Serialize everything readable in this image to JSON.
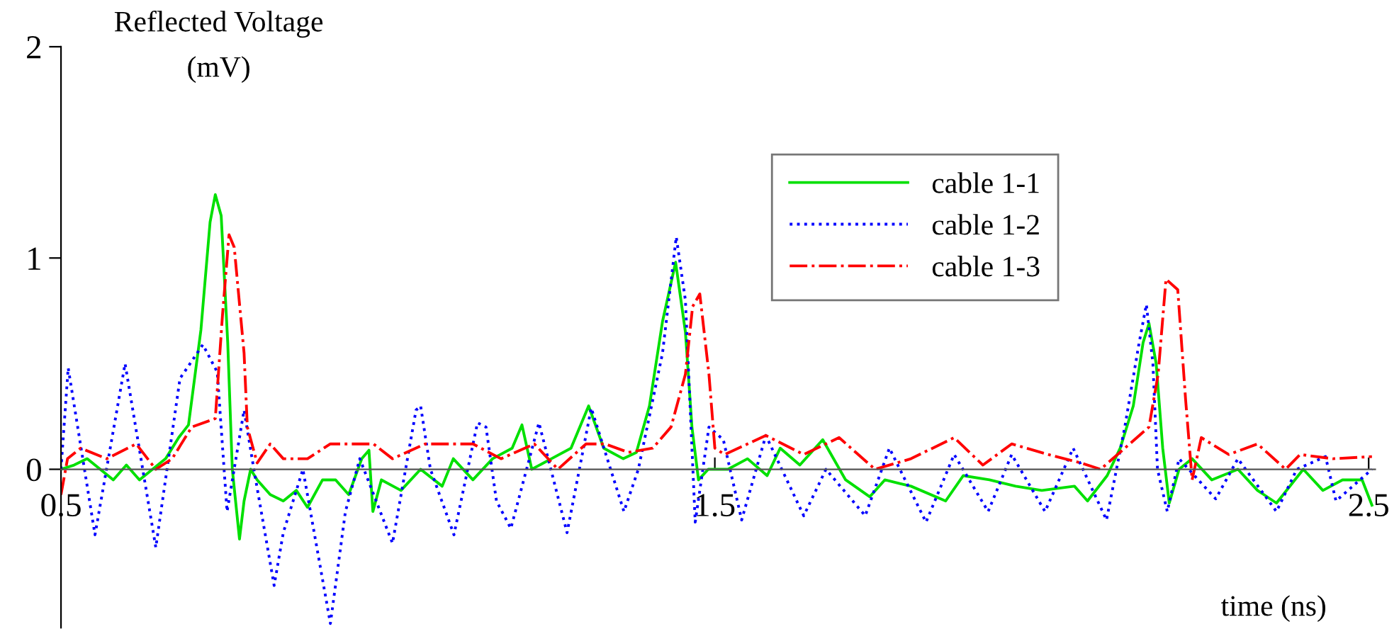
{
  "chart_data": {
    "type": "line",
    "xlabel": "time (ns)",
    "ylabel": "Reflected Voltage\n(mV)",
    "xlim": [
      0.5,
      2.51
    ],
    "ylim": [
      -0.75,
      2
    ],
    "xticks": [
      0.5,
      1.5,
      2.5
    ],
    "yticks": [
      0,
      1,
      2
    ],
    "grid": false,
    "legend": "top right",
    "marker": "none",
    "series": [
      {
        "name": "cable 1-1",
        "color": "#00e000",
        "line_style": "solid",
        "x": [
          0.5,
          0.52,
          0.54,
          0.56,
          0.58,
          0.6,
          0.62,
          0.64,
          0.66,
          0.68,
          0.695,
          0.714,
          0.728,
          0.736,
          0.745,
          0.755,
          0.762,
          0.773,
          0.78,
          0.79,
          0.8,
          0.82,
          0.84,
          0.86,
          0.877,
          0.9,
          0.92,
          0.94,
          0.96,
          0.971,
          0.977,
          0.99,
          1.02,
          1.05,
          1.083,
          1.1,
          1.13,
          1.16,
          1.19,
          1.205,
          1.22,
          1.25,
          1.28,
          1.307,
          1.33,
          1.36,
          1.38,
          1.4,
          1.42,
          1.44,
          1.455,
          1.465,
          1.475,
          1.49,
          1.52,
          1.55,
          1.58,
          1.6,
          1.63,
          1.665,
          1.7,
          1.737,
          1.76,
          1.8,
          1.853,
          1.88,
          1.92,
          1.96,
          2.0,
          2.05,
          2.07,
          2.1,
          2.12,
          2.14,
          2.155,
          2.164,
          2.175,
          2.185,
          2.195,
          2.21,
          2.23,
          2.26,
          2.3,
          2.33,
          2.359,
          2.4,
          2.43,
          2.46,
          2.49,
          2.505
        ],
        "values": [
          0.0,
          0.02,
          0.05,
          0.0,
          -0.05,
          0.02,
          -0.05,
          0.0,
          0.05,
          0.15,
          0.21,
          0.66,
          1.17,
          1.3,
          1.2,
          0.6,
          0.0,
          -0.33,
          -0.15,
          0.0,
          -0.05,
          -0.12,
          -0.15,
          -0.1,
          -0.18,
          -0.05,
          -0.05,
          -0.12,
          0.05,
          0.09,
          -0.2,
          -0.05,
          -0.1,
          0.0,
          -0.08,
          0.05,
          -0.05,
          0.05,
          0.1,
          0.21,
          0.0,
          0.05,
          0.1,
          0.3,
          0.1,
          0.05,
          0.08,
          0.3,
          0.7,
          0.98,
          0.65,
          0.2,
          -0.05,
          0.0,
          0.0,
          0.05,
          -0.03,
          0.1,
          0.02,
          0.14,
          -0.05,
          -0.13,
          -0.05,
          -0.08,
          -0.15,
          -0.03,
          -0.05,
          -0.08,
          -0.1,
          -0.08,
          -0.15,
          -0.03,
          0.1,
          0.3,
          0.6,
          0.69,
          0.5,
          0.1,
          -0.16,
          0.0,
          0.05,
          -0.05,
          0.0,
          -0.1,
          -0.16,
          0.0,
          -0.1,
          -0.05,
          -0.05,
          -0.17
        ]
      },
      {
        "name": "cable 1-2",
        "color": "#0000ff",
        "line_style": "dotted",
        "x": [
          0.5,
          0.511,
          0.552,
          0.598,
          0.645,
          0.682,
          0.717,
          0.739,
          0.754,
          0.78,
          0.795,
          0.826,
          0.84,
          0.87,
          0.912,
          0.935,
          0.957,
          1.007,
          1.043,
          1.05,
          1.065,
          1.101,
          1.137,
          1.15,
          1.166,
          1.188,
          1.231,
          1.274,
          1.311,
          1.361,
          1.383,
          1.42,
          1.441,
          1.455,
          1.47,
          1.491,
          1.513,
          1.541,
          1.578,
          1.636,
          1.67,
          1.73,
          1.767,
          1.823,
          1.866,
          1.918,
          1.954,
          2.005,
          2.048,
          2.099,
          2.127,
          2.149,
          2.16,
          2.17,
          2.177,
          2.192,
          2.21,
          2.266,
          2.3,
          2.359,
          2.39,
          2.434,
          2.45,
          2.505
        ],
        "values": [
          0.0,
          0.48,
          -0.31,
          0.5,
          -0.37,
          0.43,
          0.59,
          0.46,
          -0.2,
          0.28,
          0.0,
          -0.55,
          -0.3,
          0.0,
          -0.73,
          -0.2,
          0.05,
          -0.35,
          0.28,
          0.3,
          0.0,
          -0.31,
          0.22,
          0.2,
          -0.15,
          -0.28,
          0.22,
          -0.3,
          0.29,
          -0.2,
          0.0,
          0.55,
          1.1,
          0.8,
          -0.25,
          0.2,
          0.14,
          -0.24,
          0.16,
          -0.22,
          0.0,
          -0.22,
          0.1,
          -0.25,
          0.07,
          -0.2,
          0.07,
          -0.2,
          0.1,
          -0.24,
          0.2,
          0.6,
          0.78,
          0.5,
          0.0,
          -0.2,
          0.05,
          -0.14,
          0.05,
          -0.2,
          0.0,
          0.06,
          -0.15,
          0.0
        ]
      },
      {
        "name": "cable 1-3",
        "color": "#ff0000",
        "line_style": "dashdot",
        "x": [
          0.5,
          0.51,
          0.53,
          0.57,
          0.615,
          0.645,
          0.67,
          0.7,
          0.736,
          0.747,
          0.757,
          0.765,
          0.78,
          0.785,
          0.8,
          0.82,
          0.84,
          0.877,
          0.912,
          0.978,
          1.007,
          1.057,
          1.094,
          1.13,
          1.173,
          1.224,
          1.26,
          1.303,
          1.332,
          1.368,
          1.405,
          1.433,
          1.455,
          1.466,
          1.477,
          1.491,
          1.5,
          1.515,
          1.578,
          1.636,
          1.69,
          1.745,
          1.8,
          1.866,
          1.91,
          1.954,
          2.01,
          2.06,
          2.09,
          2.127,
          2.164,
          2.178,
          2.19,
          2.208,
          2.22,
          2.23,
          2.244,
          2.286,
          2.33,
          2.373,
          2.395,
          2.445,
          2.505
        ],
        "values": [
          -0.12,
          0.05,
          0.1,
          0.05,
          0.12,
          0.0,
          0.05,
          0.2,
          0.24,
          0.73,
          1.11,
          1.05,
          0.55,
          0.2,
          0.03,
          0.12,
          0.05,
          0.05,
          0.12,
          0.12,
          0.05,
          0.12,
          0.12,
          0.12,
          0.05,
          0.12,
          0.0,
          0.12,
          0.12,
          0.08,
          0.1,
          0.2,
          0.45,
          0.77,
          0.83,
          0.45,
          0.1,
          0.07,
          0.16,
          0.07,
          0.15,
          0.0,
          0.05,
          0.15,
          0.02,
          0.12,
          0.07,
          0.03,
          0.0,
          0.1,
          0.2,
          0.45,
          0.9,
          0.85,
          0.33,
          -0.05,
          0.15,
          0.07,
          0.12,
          0.0,
          0.07,
          0.05,
          0.06
        ]
      }
    ]
  }
}
